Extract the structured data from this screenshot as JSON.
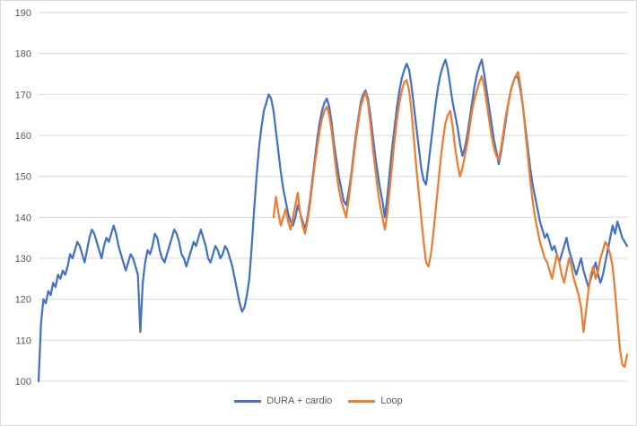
{
  "chart_data": {
    "type": "line",
    "title": "",
    "xlabel": "",
    "ylabel": "",
    "ylim": [
      100,
      190
    ],
    "y_ticks": [
      100,
      110,
      120,
      130,
      140,
      150,
      160,
      170,
      180,
      190
    ],
    "grid": true,
    "legend_position": "bottom",
    "series": [
      {
        "name": "DURA + cardio",
        "color": "#4472C4",
        "values": [
          100,
          114,
          120,
          119,
          122,
          121,
          124,
          123,
          126,
          125,
          127,
          126,
          128,
          131,
          130,
          132,
          134,
          133,
          131,
          129,
          132,
          135,
          137,
          136,
          134,
          132,
          130,
          133,
          135,
          134,
          136,
          138,
          136,
          133,
          131,
          129,
          127,
          129,
          131,
          130,
          128,
          126,
          112,
          124,
          129,
          132,
          131,
          133,
          136,
          135,
          132,
          130,
          129,
          131,
          133,
          135,
          137,
          136,
          134,
          131,
          130,
          128,
          130,
          132,
          134,
          133,
          135,
          137,
          135,
          133,
          130,
          129,
          131,
          133,
          132,
          130,
          131,
          133,
          132,
          130,
          128,
          125,
          122,
          119,
          117,
          118,
          121,
          125,
          133,
          142,
          150,
          157,
          162,
          166,
          168,
          170,
          169,
          166,
          161,
          156,
          151,
          147,
          144,
          141,
          139,
          138,
          140,
          143,
          141,
          139,
          137,
          140,
          144,
          149,
          154,
          159,
          163,
          166,
          168,
          169,
          167,
          163,
          158,
          154,
          150,
          147,
          144,
          143,
          146,
          150,
          155,
          160,
          164,
          168,
          170,
          171,
          169,
          165,
          160,
          155,
          151,
          147,
          144,
          140,
          145,
          151,
          157,
          162,
          167,
          171,
          174,
          176,
          177.5,
          176,
          172,
          167,
          162,
          157,
          152,
          149,
          148,
          153,
          158,
          163,
          168,
          172,
          175,
          177,
          178.5,
          176,
          172,
          168,
          165,
          162,
          158,
          155,
          157,
          160,
          164,
          168,
          172,
          175,
          177,
          178.5,
          175,
          171,
          167,
          163,
          159,
          156,
          153,
          156,
          160,
          164,
          168,
          171,
          173,
          174.5,
          174,
          171,
          167,
          162,
          157,
          152,
          148,
          145,
          142,
          139,
          137,
          135,
          136,
          134,
          132,
          133,
          131,
          129,
          131,
          133,
          135,
          132,
          130,
          128,
          126,
          128,
          130,
          127,
          125,
          123,
          125,
          127,
          129,
          126,
          124,
          126,
          129,
          132,
          135,
          138,
          136,
          139,
          137,
          135,
          134,
          133
        ]
      },
      {
        "name": "Loop",
        "color": "#ED7D31",
        "values": [
          null,
          null,
          null,
          null,
          null,
          null,
          null,
          null,
          null,
          null,
          null,
          null,
          null,
          null,
          null,
          null,
          null,
          null,
          null,
          null,
          null,
          null,
          null,
          null,
          null,
          null,
          null,
          null,
          null,
          null,
          null,
          null,
          null,
          null,
          null,
          null,
          null,
          null,
          null,
          null,
          null,
          null,
          null,
          null,
          null,
          null,
          null,
          null,
          null,
          null,
          null,
          null,
          null,
          null,
          null,
          null,
          null,
          null,
          null,
          null,
          null,
          null,
          null,
          null,
          null,
          null,
          null,
          null,
          null,
          null,
          null,
          null,
          null,
          null,
          null,
          null,
          null,
          null,
          null,
          null,
          null,
          null,
          null,
          null,
          null,
          null,
          null,
          null,
          null,
          null,
          null,
          null,
          null,
          null,
          null,
          null,
          null,
          140,
          145,
          141,
          138,
          140,
          142,
          139,
          137,
          140,
          143,
          146,
          141,
          138,
          136,
          139,
          143,
          148,
          153,
          157,
          161,
          164,
          166,
          167,
          165,
          161,
          156,
          151,
          147,
          144,
          142,
          140,
          144,
          149,
          154,
          159,
          163,
          167,
          169,
          170.5,
          168,
          163,
          157,
          152,
          147,
          143,
          140,
          137,
          141,
          147,
          153,
          159,
          164,
          168,
          171,
          173,
          173.5,
          171,
          166,
          159,
          152,
          146,
          140,
          134,
          129,
          128,
          131,
          136,
          142,
          148,
          154,
          159,
          163,
          165,
          166,
          162,
          157,
          153,
          150,
          152,
          155,
          158,
          162,
          166,
          169,
          171,
          173,
          174.5,
          172,
          168,
          164,
          160,
          157,
          155,
          154,
          157,
          161,
          165,
          168,
          171,
          173,
          174.5,
          175.5,
          172,
          167,
          161,
          155,
          149,
          144,
          140,
          137,
          134,
          132,
          130,
          129,
          127,
          125,
          128,
          131,
          129,
          126,
          124,
          127,
          130,
          128,
          125,
          123,
          121,
          118,
          112,
          117,
          122,
          126,
          128,
          125,
          127,
          130,
          132,
          134,
          133,
          131,
          128,
          122,
          115,
          108,
          104,
          103.5,
          106.5
        ]
      }
    ]
  },
  "styles": {
    "background": "#FFFFFF",
    "border_color": "#D9D9D9",
    "grid_color": "#D9D9D9",
    "tick_color": "#595959"
  }
}
